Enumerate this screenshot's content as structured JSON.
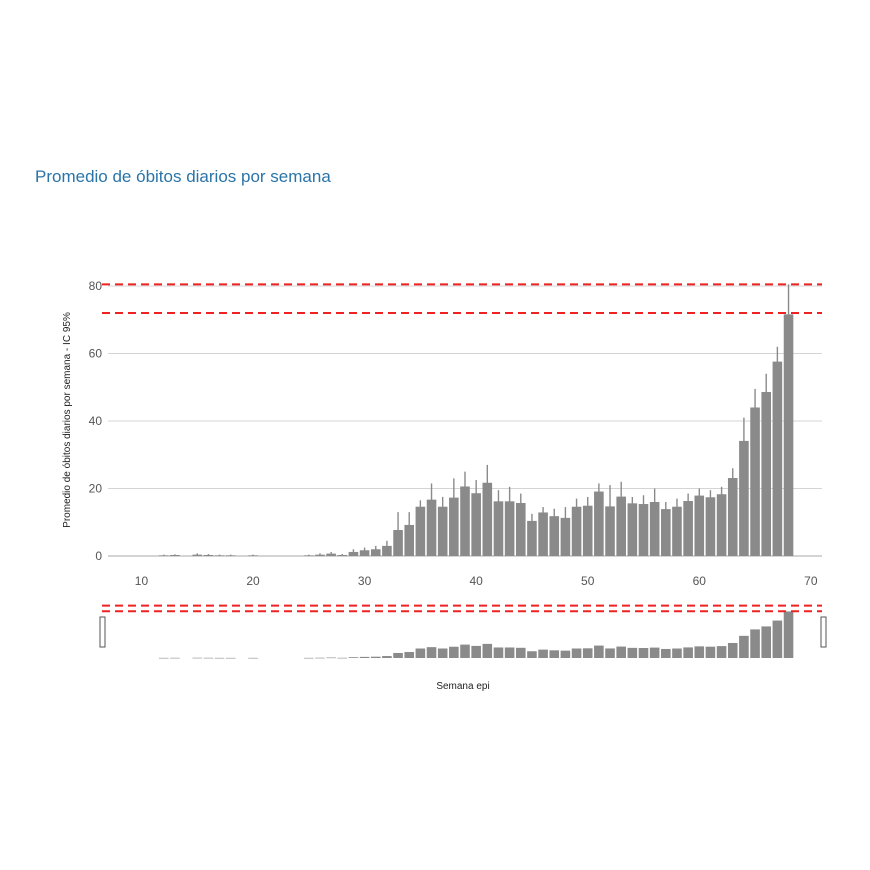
{
  "chart_data": {
    "type": "bar",
    "title": "Promedio de óbitos diarios por semana",
    "xlabel": "Semana epi",
    "ylabel": "Promedio de óbitos diarios por semana - IC 95%",
    "xlim": [
      7,
      71
    ],
    "ylim": [
      0,
      80
    ],
    "x_ticks": [
      10,
      20,
      30,
      40,
      50,
      60,
      70
    ],
    "y_ticks": [
      0,
      20,
      40,
      60,
      80
    ],
    "grid": true,
    "legend": "none",
    "reference_lines": [
      80.5,
      72
    ],
    "series": [
      {
        "x": [
          12,
          13,
          15,
          16,
          17,
          18,
          20,
          25,
          26,
          27,
          28,
          29,
          30,
          31,
          32,
          33,
          34,
          35,
          36,
          37,
          38,
          39,
          40,
          41,
          42,
          43,
          44,
          45,
          46,
          47,
          48,
          49,
          50,
          51,
          52,
          53,
          54,
          55,
          56,
          57,
          58,
          59,
          60,
          61,
          62,
          63,
          64,
          65,
          66,
          67,
          68
        ],
        "values": [
          0.2,
          0.3,
          0.4,
          0.3,
          0.2,
          0.2,
          0.2,
          0.2,
          0.4,
          0.7,
          0.3,
          1.2,
          1.7,
          2.0,
          3.0,
          7.7,
          9.2,
          14.6,
          16.7,
          14.6,
          17.3,
          20.6,
          18.6,
          21.7,
          16.2,
          16.2,
          15.7,
          10.4,
          12.9,
          11.8,
          11.3,
          14.6,
          14.9,
          19.1,
          14.7,
          17.6,
          15.6,
          15.4,
          16.0,
          13.9,
          14.6,
          16.3,
          17.9,
          17.4,
          18.3,
          23.1,
          34.1,
          44.0,
          48.6,
          57.6,
          71.6
        ],
        "ci_low": [
          0.1,
          0.1,
          0.1,
          0.1,
          0.1,
          0.1,
          0.1,
          0.1,
          0.1,
          0.3,
          0.1,
          0.6,
          1.0,
          1.2,
          2.0,
          5.5,
          6.5,
          12.5,
          13.5,
          12.5,
          14.5,
          17.5,
          15.5,
          18.5,
          13.5,
          13.0,
          13.0,
          8.8,
          11.0,
          9.8,
          9.2,
          12.5,
          12.5,
          16.5,
          12.5,
          14.5,
          13.5,
          13.0,
          13.5,
          12.0,
          12.5,
          14.0,
          15.5,
          15.5,
          16.0,
          20.5,
          29.0,
          40.0,
          44.5,
          53.5,
          63.5
        ],
        "ci_high": [
          0.4,
          0.5,
          0.8,
          0.6,
          0.4,
          0.4,
          0.4,
          0.4,
          0.8,
          1.2,
          0.6,
          2.0,
          2.5,
          3.0,
          4.5,
          13.0,
          13.0,
          16.5,
          21.5,
          17.5,
          23.0,
          25.0,
          22.5,
          27.0,
          19.5,
          20.5,
          18.5,
          12.5,
          14.5,
          14.0,
          14.5,
          17.0,
          17.5,
          21.5,
          21.0,
          22.0,
          17.5,
          18.0,
          20.0,
          16.0,
          17.0,
          18.5,
          20.0,
          19.5,
          20.5,
          26.0,
          41.0,
          49.5,
          54.0,
          62.0,
          80.5
        ]
      }
    ],
    "range_slider": true
  }
}
